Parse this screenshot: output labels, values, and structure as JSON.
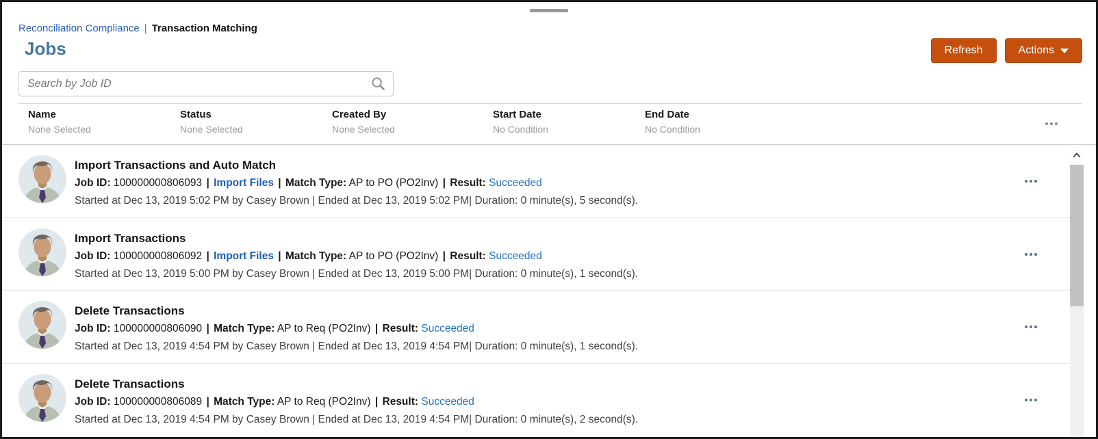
{
  "breadcrumb": {
    "parent": "Reconciliation Compliance",
    "separator": "|",
    "current": "Transaction Matching"
  },
  "page": {
    "title": "Jobs"
  },
  "toolbar": {
    "refresh_label": "Refresh",
    "actions_label": "Actions"
  },
  "search": {
    "placeholder": "Search by Job ID",
    "value": ""
  },
  "filters": {
    "columns": [
      {
        "label": "Name",
        "condition": "None Selected"
      },
      {
        "label": "Status",
        "condition": "None Selected"
      },
      {
        "label": "Created By",
        "condition": "None Selected"
      },
      {
        "label": "Start Date",
        "condition": "No Condition"
      },
      {
        "label": "End Date",
        "condition": "No Condition"
      }
    ]
  },
  "labels": {
    "job_id": "Job ID:",
    "import_files": "Import Files",
    "match_type": "Match Type:",
    "result": "Result:",
    "pipe": "|"
  },
  "jobs": [
    {
      "title": "Import Transactions and Auto Match",
      "job_id": "100000000806093",
      "has_import_files": true,
      "match_type": "AP to PO (PO2Inv)",
      "result": "Succeeded",
      "timing": "Started at Dec 13, 2019 5:02 PM by Casey Brown | Ended at Dec 13, 2019 5:02 PM| Duration: 0 minute(s), 5 second(s)."
    },
    {
      "title": "Import Transactions",
      "job_id": "100000000806092",
      "has_import_files": true,
      "match_type": "AP to PO (PO2Inv)",
      "result": "Succeeded",
      "timing": "Started at Dec 13, 2019 5:00 PM by Casey Brown | Ended at Dec 13, 2019 5:00 PM| Duration: 0 minute(s), 1 second(s)."
    },
    {
      "title": "Delete Transactions",
      "job_id": "100000000806090",
      "has_import_files": false,
      "match_type": "AP to Req (PO2Inv)",
      "result": "Succeeded",
      "timing": "Started at Dec 13, 2019 4:54 PM by Casey Brown | Ended at Dec 13, 2019 4:54 PM| Duration: 0 minute(s), 1 second(s)."
    },
    {
      "title": "Delete Transactions",
      "job_id": "100000000806089",
      "has_import_files": false,
      "match_type": "AP to Req (PO2Inv)",
      "result": "Succeeded",
      "timing": "Started at Dec 13, 2019 4:54 PM by Casey Brown | Ended at Dec 13, 2019 4:54 PM| Duration: 0 minute(s), 2 second(s)."
    }
  ],
  "colors": {
    "accent_orange": "#c5500d",
    "breadcrumb_link": "#2a5db0",
    "heading_blue": "#44749e",
    "link_bold_blue": "#1f5cb4",
    "succeeded_blue": "#2372be"
  }
}
